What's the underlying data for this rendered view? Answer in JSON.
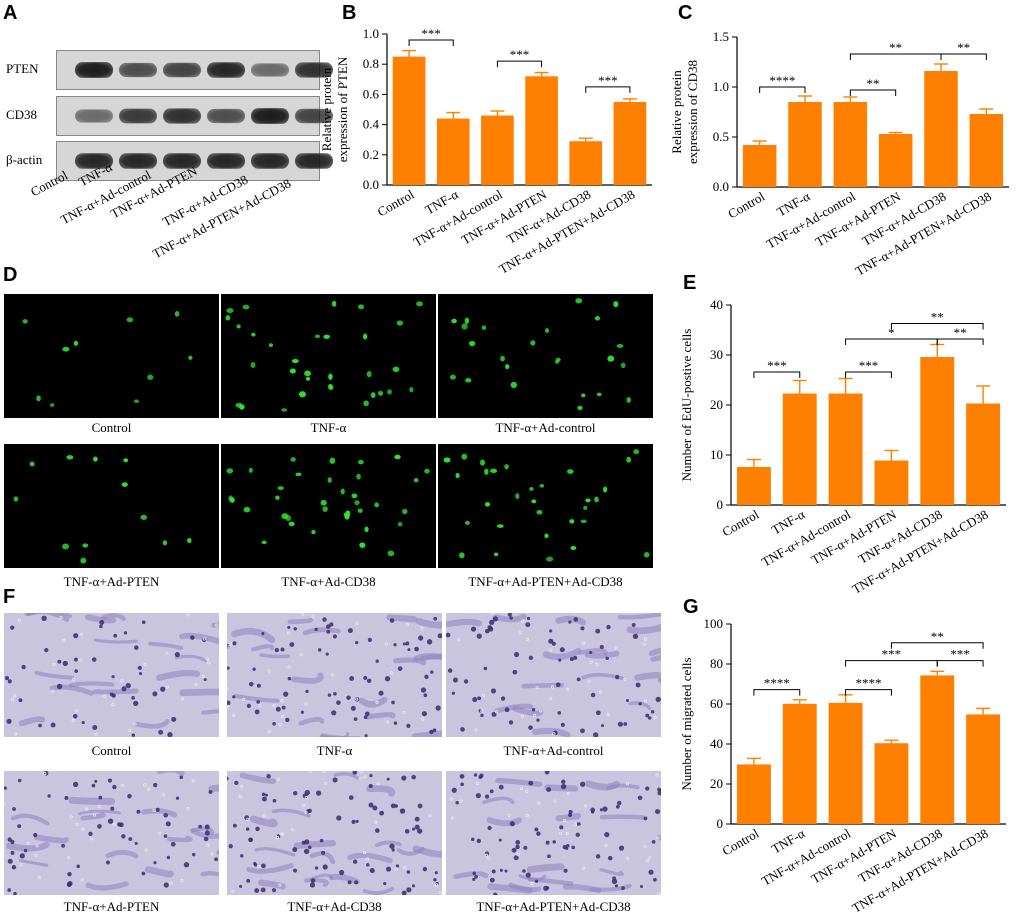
{
  "panel_letters": {
    "a": "A",
    "b": "B",
    "c": "C",
    "d": "D",
    "e": "E",
    "f": "F",
    "g": "G"
  },
  "groups": [
    "Control",
    "TNF-α",
    "TNF-α+Ad-control",
    "TNF-α+Ad-PTEN",
    "TNF-α+Ad-CD38",
    "TNF-α+Ad-PTEN+Ad-CD38"
  ],
  "blot": {
    "rows": [
      "PTEN",
      "CD38",
      "β-actin"
    ],
    "lanes": [
      "Control",
      "TNF-α",
      "TNF-α+Ad-control",
      "TNF-α+Ad-PTEN",
      "TNF-α+Ad-CD38",
      "TNF-α+Ad-PTEN+Ad-CD38"
    ],
    "intensity": {
      "PTEN": [
        0.95,
        0.7,
        0.75,
        0.9,
        0.55,
        0.85
      ],
      "CD38": [
        0.55,
        0.8,
        0.85,
        0.7,
        0.95,
        0.75
      ],
      "β-actin": [
        0.9,
        0.9,
        0.9,
        0.9,
        0.9,
        0.9
      ]
    }
  },
  "edu_captions": [
    "Control",
    "TNF-α",
    "TNF-α+Ad-control",
    "TNF-α+Ad-PTEN",
    "TNF-α+Ad-CD38",
    "TNF-α+Ad-PTEN+Ad-CD38"
  ],
  "transwell_captions": [
    "Control",
    "TNF-α",
    "TNF-α+Ad-control",
    "TNF-α+Ad-PTEN",
    "TNF-α+Ad-CD38",
    "TNF-α+Ad-PTEN+Ad-CD38"
  ],
  "colors": {
    "bar": "#ff8000",
    "fluor_cell": "#2ee52e",
    "stain_cell": "#3a2a6e",
    "stain_bg": "#c9c5de"
  },
  "chart_data": [
    {
      "id": "B",
      "type": "bar",
      "ylabel": "Relative protein expression of PTEN",
      "ylabel_lines": [
        "Relative protein",
        "expression of PTEN"
      ],
      "categories": [
        "Control",
        "TNF-α",
        "TNF-α+Ad-control",
        "TNF-α+Ad-PTEN",
        "TNF-α+Ad-CD38",
        "TNF-α+Ad-PTEN+Ad-CD38"
      ],
      "values": [
        0.85,
        0.44,
        0.46,
        0.72,
        0.29,
        0.55
      ],
      "errors": [
        0.04,
        0.04,
        0.03,
        0.025,
        0.02,
        0.02
      ],
      "ylim": [
        0,
        1.0
      ],
      "yticks": [
        0.0,
        0.2,
        0.4,
        0.6,
        0.8,
        1.0
      ],
      "ytick_labels": [
        "0.0",
        "0.2",
        "0.4",
        "0.6",
        "0.8",
        "1.0"
      ],
      "significance": [
        {
          "from": 0,
          "to": 1,
          "label": "***",
          "y": 0.96
        },
        {
          "from": 2,
          "to": 3,
          "label": "***",
          "y": 0.82
        },
        {
          "from": 4,
          "to": 5,
          "label": "***",
          "y": 0.65
        }
      ]
    },
    {
      "id": "C",
      "type": "bar",
      "ylabel": "Relative protein expression of CD38",
      "ylabel_lines": [
        "Relative protein",
        "expression of CD38"
      ],
      "categories": [
        "Control",
        "TNF-α",
        "TNF-α+Ad-control",
        "TNF-α+Ad-PTEN",
        "TNF-α+Ad-CD38",
        "TNF-α+Ad-PTEN+Ad-CD38"
      ],
      "values": [
        0.42,
        0.85,
        0.85,
        0.53,
        1.16,
        0.73
      ],
      "errors": [
        0.04,
        0.06,
        0.05,
        0.015,
        0.07,
        0.05
      ],
      "ylim": [
        0,
        1.5
      ],
      "yticks": [
        0.0,
        0.5,
        1.0,
        1.5
      ],
      "ytick_labels": [
        "0.0",
        "0.5",
        "1.0",
        "1.5"
      ],
      "significance": [
        {
          "from": 0,
          "to": 1,
          "label": "****",
          "y": 1.0
        },
        {
          "from": 2,
          "to": 3,
          "label": "**",
          "y": 0.97
        },
        {
          "from": 2,
          "to": 4,
          "label": "**",
          "y": 1.33
        },
        {
          "from": 4,
          "to": 5,
          "label": "**",
          "y": 1.33
        }
      ]
    },
    {
      "id": "E",
      "type": "bar",
      "ylabel": "Number of EdU-postive cells",
      "ylabel_lines": [
        "Number of EdU-postive cells"
      ],
      "categories": [
        "Control",
        "TNF-α",
        "TNF-α+Ad-control",
        "TNF-α+Ad-PTEN",
        "TNF-α+Ad-CD38",
        "TNF-α+Ad-PTEN+Ad-CD38"
      ],
      "values": [
        7.6,
        22.3,
        22.3,
        8.9,
        29.6,
        20.3
      ],
      "errors": [
        1.5,
        2.6,
        3.0,
        2.0,
        2.5,
        3.5
      ],
      "ylim": [
        0,
        40
      ],
      "yticks": [
        0,
        10,
        20,
        30,
        40
      ],
      "ytick_labels": [
        "0",
        "10",
        "20",
        "30",
        "40"
      ],
      "significance": [
        {
          "from": 0,
          "to": 1,
          "label": "***",
          "y": 26.6
        },
        {
          "from": 2,
          "to": 3,
          "label": "***",
          "y": 26.6
        },
        {
          "from": 2,
          "to": 4,
          "label": "*",
          "y": 33.2
        },
        {
          "from": 4,
          "to": 5,
          "label": "**",
          "y": 33.2
        },
        {
          "from": 3,
          "to": 5,
          "label": "**",
          "y": 36.3
        }
      ]
    },
    {
      "id": "G",
      "type": "bar",
      "ylabel": "Number of migrated cells",
      "ylabel_lines": [
        "Number of migrated cells"
      ],
      "categories": [
        "Control",
        "TNF-α",
        "TNF-α+Ad-control",
        "TNF-α+Ad-PTEN",
        "TNF-α+Ad-CD38",
        "TNF-α+Ad-PTEN+Ad-CD38"
      ],
      "values": [
        29.8,
        60.1,
        60.6,
        40.4,
        74.3,
        54.8
      ],
      "errors": [
        3.0,
        2.0,
        4.0,
        1.5,
        2.0,
        3.0
      ],
      "ylim": [
        0,
        100
      ],
      "yticks": [
        0,
        20,
        40,
        60,
        80,
        100
      ],
      "ytick_labels": [
        "0",
        "20",
        "40",
        "60",
        "80",
        "100"
      ],
      "significance": [
        {
          "from": 0,
          "to": 1,
          "label": "****",
          "y": 67.2
        },
        {
          "from": 2,
          "to": 3,
          "label": "****",
          "y": 67.2
        },
        {
          "from": 2,
          "to": 4,
          "label": "***",
          "y": 81.7
        },
        {
          "from": 4,
          "to": 5,
          "label": "***",
          "y": 81.7
        },
        {
          "from": 3,
          "to": 5,
          "label": "**",
          "y": 90.6
        }
      ]
    }
  ]
}
